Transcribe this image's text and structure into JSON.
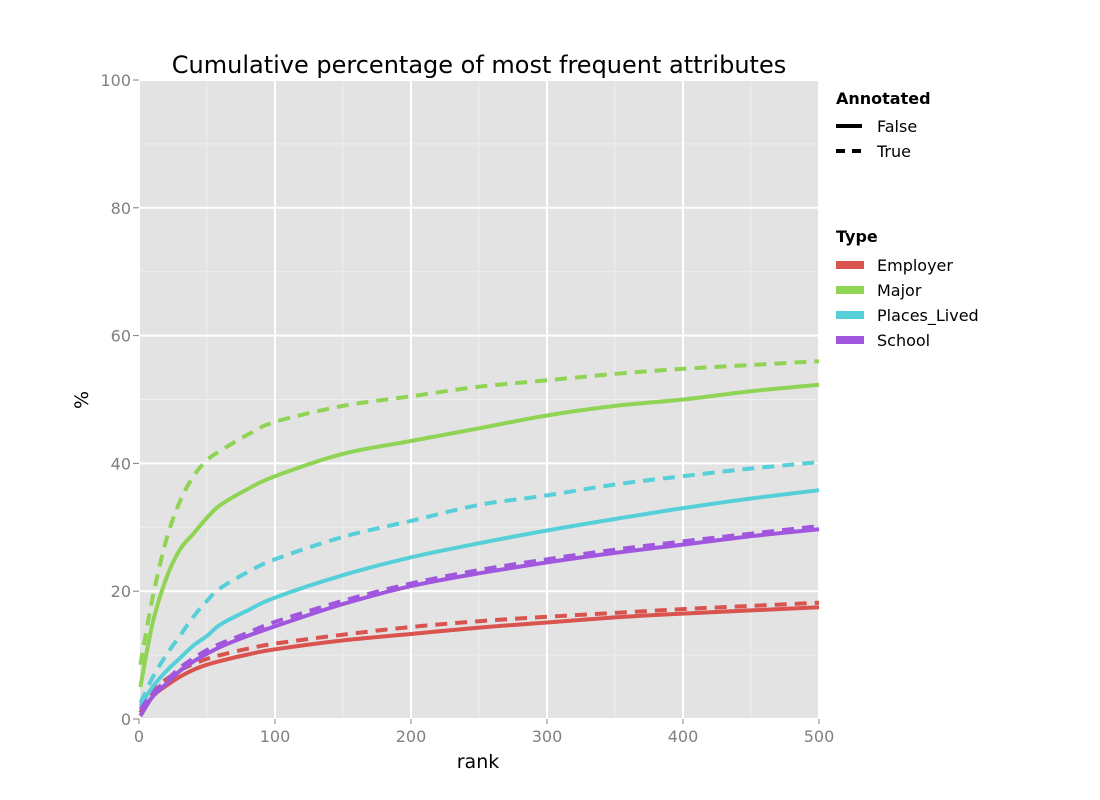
{
  "chart_data": {
    "type": "line",
    "title": "Cumulative percentage of most frequent attributes",
    "xlabel": "rank",
    "ylabel": "%",
    "xlim": [
      0,
      500
    ],
    "ylim": [
      0,
      100
    ],
    "xticks": [
      0,
      100,
      200,
      300,
      400,
      500
    ],
    "yticks": [
      0,
      20,
      40,
      60,
      80,
      100
    ],
    "grid": true,
    "legend_placement": "right",
    "legends": {
      "annotated": {
        "title": "Annotated",
        "entries": [
          {
            "label": "False",
            "style": "solid"
          },
          {
            "label": "True",
            "style": "dashed"
          }
        ]
      },
      "type": {
        "title": "Type",
        "entries": [
          {
            "label": "Employer",
            "color": "#d9534f"
          },
          {
            "label": "Major",
            "color": "#8fd454"
          },
          {
            "label": "Places_Lived",
            "color": "#56cfd8"
          },
          {
            "label": "School",
            "color": "#a057de"
          }
        ]
      }
    },
    "x": [
      1,
      10,
      20,
      30,
      40,
      50,
      60,
      80,
      100,
      150,
      200,
      250,
      300,
      350,
      400,
      450,
      500
    ],
    "series": [
      {
        "type": "Employer",
        "annotated": "False",
        "color": "#d9534f",
        "dash": false,
        "values": [
          0.5,
          3.5,
          5.2,
          6.6,
          7.7,
          8.5,
          9.1,
          10.1,
          10.9,
          12.3,
          13.3,
          14.3,
          15.1,
          15.9,
          16.5,
          17.0,
          17.5
        ]
      },
      {
        "type": "Employer",
        "annotated": "True",
        "color": "#d9534f",
        "dash": true,
        "values": [
          1.0,
          4.5,
          6.2,
          7.6,
          8.6,
          9.4,
          10.0,
          11.0,
          11.8,
          13.2,
          14.4,
          15.3,
          16.0,
          16.6,
          17.2,
          17.7,
          18.2
        ]
      },
      {
        "type": "Major",
        "annotated": "False",
        "color": "#8fd454",
        "dash": false,
        "values": [
          5.0,
          15.0,
          22.0,
          26.5,
          29.0,
          31.5,
          33.5,
          36.0,
          38.0,
          41.5,
          43.5,
          45.5,
          47.5,
          49.0,
          50.0,
          51.3,
          52.3
        ]
      },
      {
        "type": "Major",
        "annotated": "True",
        "color": "#8fd454",
        "dash": true,
        "values": [
          8.5,
          19.0,
          28.0,
          34.0,
          38.0,
          40.5,
          42.0,
          44.5,
          46.5,
          49.0,
          50.5,
          52.0,
          53.0,
          54.0,
          54.8,
          55.4,
          56.0
        ]
      },
      {
        "type": "Places_Lived",
        "annotated": "False",
        "color": "#56cfd8",
        "dash": false,
        "values": [
          2.0,
          5.0,
          7.5,
          9.5,
          11.5,
          13.0,
          14.8,
          17.0,
          19.0,
          22.5,
          25.3,
          27.5,
          29.5,
          31.3,
          33.0,
          34.5,
          35.8
        ]
      },
      {
        "type": "Places_Lived",
        "annotated": "True",
        "color": "#56cfd8",
        "dash": true,
        "values": [
          2.5,
          6.5,
          10.0,
          13.0,
          16.0,
          18.5,
          20.5,
          23.0,
          25.0,
          28.5,
          31.0,
          33.5,
          35.0,
          36.7,
          38.0,
          39.2,
          40.2
        ]
      },
      {
        "type": "School",
        "annotated": "False",
        "color": "#a057de",
        "dash": false,
        "values": [
          0.5,
          3.5,
          5.5,
          7.5,
          9.0,
          10.2,
          11.3,
          13.0,
          14.5,
          18.0,
          20.8,
          22.8,
          24.5,
          26.0,
          27.3,
          28.6,
          29.7
        ]
      },
      {
        "type": "School",
        "annotated": "True",
        "color": "#a057de",
        "dash": true,
        "values": [
          1.5,
          4.0,
          6.0,
          8.0,
          9.5,
          10.8,
          11.8,
          13.5,
          15.2,
          18.5,
          21.2,
          23.3,
          25.0,
          26.5,
          27.8,
          29.0,
          30.2
        ]
      }
    ]
  }
}
